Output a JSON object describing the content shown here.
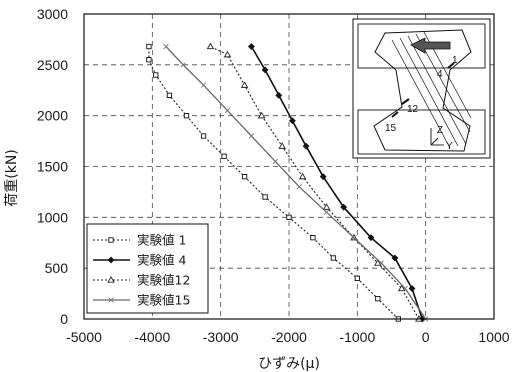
{
  "chart_data": {
    "type": "line",
    "xlabel": "ひずみ(μ)",
    "ylabel": "荷重(kN)",
    "xlim": [
      -5000,
      1000
    ],
    "ylim": [
      0,
      3000
    ],
    "xticks": [
      "-5000",
      "-4000",
      "-3000",
      "-2000",
      "-1000",
      "0",
      "1000"
    ],
    "yticks": [
      "0",
      "500",
      "1000",
      "1500",
      "2000",
      "2500",
      "3000"
    ],
    "grid": "dashed",
    "legend_position": "bottom-left",
    "series": [
      {
        "name": "実験値 1",
        "marker": "square",
        "style": "dotted",
        "points": [
          [
            -400,
            0
          ],
          [
            -700,
            200
          ],
          [
            -1000,
            400
          ],
          [
            -1350,
            600
          ],
          [
            -1650,
            800
          ],
          [
            -2000,
            1000
          ],
          [
            -2350,
            1200
          ],
          [
            -2650,
            1400
          ],
          [
            -2950,
            1600
          ],
          [
            -3250,
            1800
          ],
          [
            -3500,
            2000
          ],
          [
            -3750,
            2200
          ],
          [
            -3950,
            2400
          ],
          [
            -4050,
            2550
          ],
          [
            -4050,
            2680
          ]
        ]
      },
      {
        "name": "実験値 4",
        "marker": "diamond",
        "style": "solid",
        "points": [
          [
            -50,
            0
          ],
          [
            -200,
            300
          ],
          [
            -450,
            600
          ],
          [
            -800,
            800
          ],
          [
            -1200,
            1100
          ],
          [
            -1500,
            1400
          ],
          [
            -1750,
            1700
          ],
          [
            -1950,
            1950
          ],
          [
            -2150,
            2200
          ],
          [
            -2350,
            2450
          ],
          [
            -2550,
            2680
          ]
        ]
      },
      {
        "name": "実験値12",
        "marker": "triangle",
        "style": "dotted",
        "points": [
          [
            -100,
            0
          ],
          [
            -350,
            300
          ],
          [
            -700,
            550
          ],
          [
            -1050,
            800
          ],
          [
            -1450,
            1100
          ],
          [
            -1800,
            1400
          ],
          [
            -2100,
            1700
          ],
          [
            -2400,
            2000
          ],
          [
            -2650,
            2300
          ],
          [
            -2900,
            2600
          ],
          [
            -3150,
            2680
          ]
        ]
      },
      {
        "name": "実験値15",
        "marker": "x-dot",
        "style": "solid-thin",
        "points": [
          [
            0,
            0
          ],
          [
            -300,
            300
          ],
          [
            -650,
            550
          ],
          [
            -1050,
            800
          ],
          [
            -1450,
            1050
          ],
          [
            -1850,
            1300
          ],
          [
            -2200,
            1550
          ],
          [
            -2550,
            1800
          ],
          [
            -2900,
            2050
          ],
          [
            -3250,
            2300
          ],
          [
            -3550,
            2500
          ],
          [
            -3800,
            2680
          ]
        ]
      }
    ],
    "inset_labels": [
      "1",
      "4",
      "12",
      "15",
      "Z",
      "Y"
    ]
  }
}
